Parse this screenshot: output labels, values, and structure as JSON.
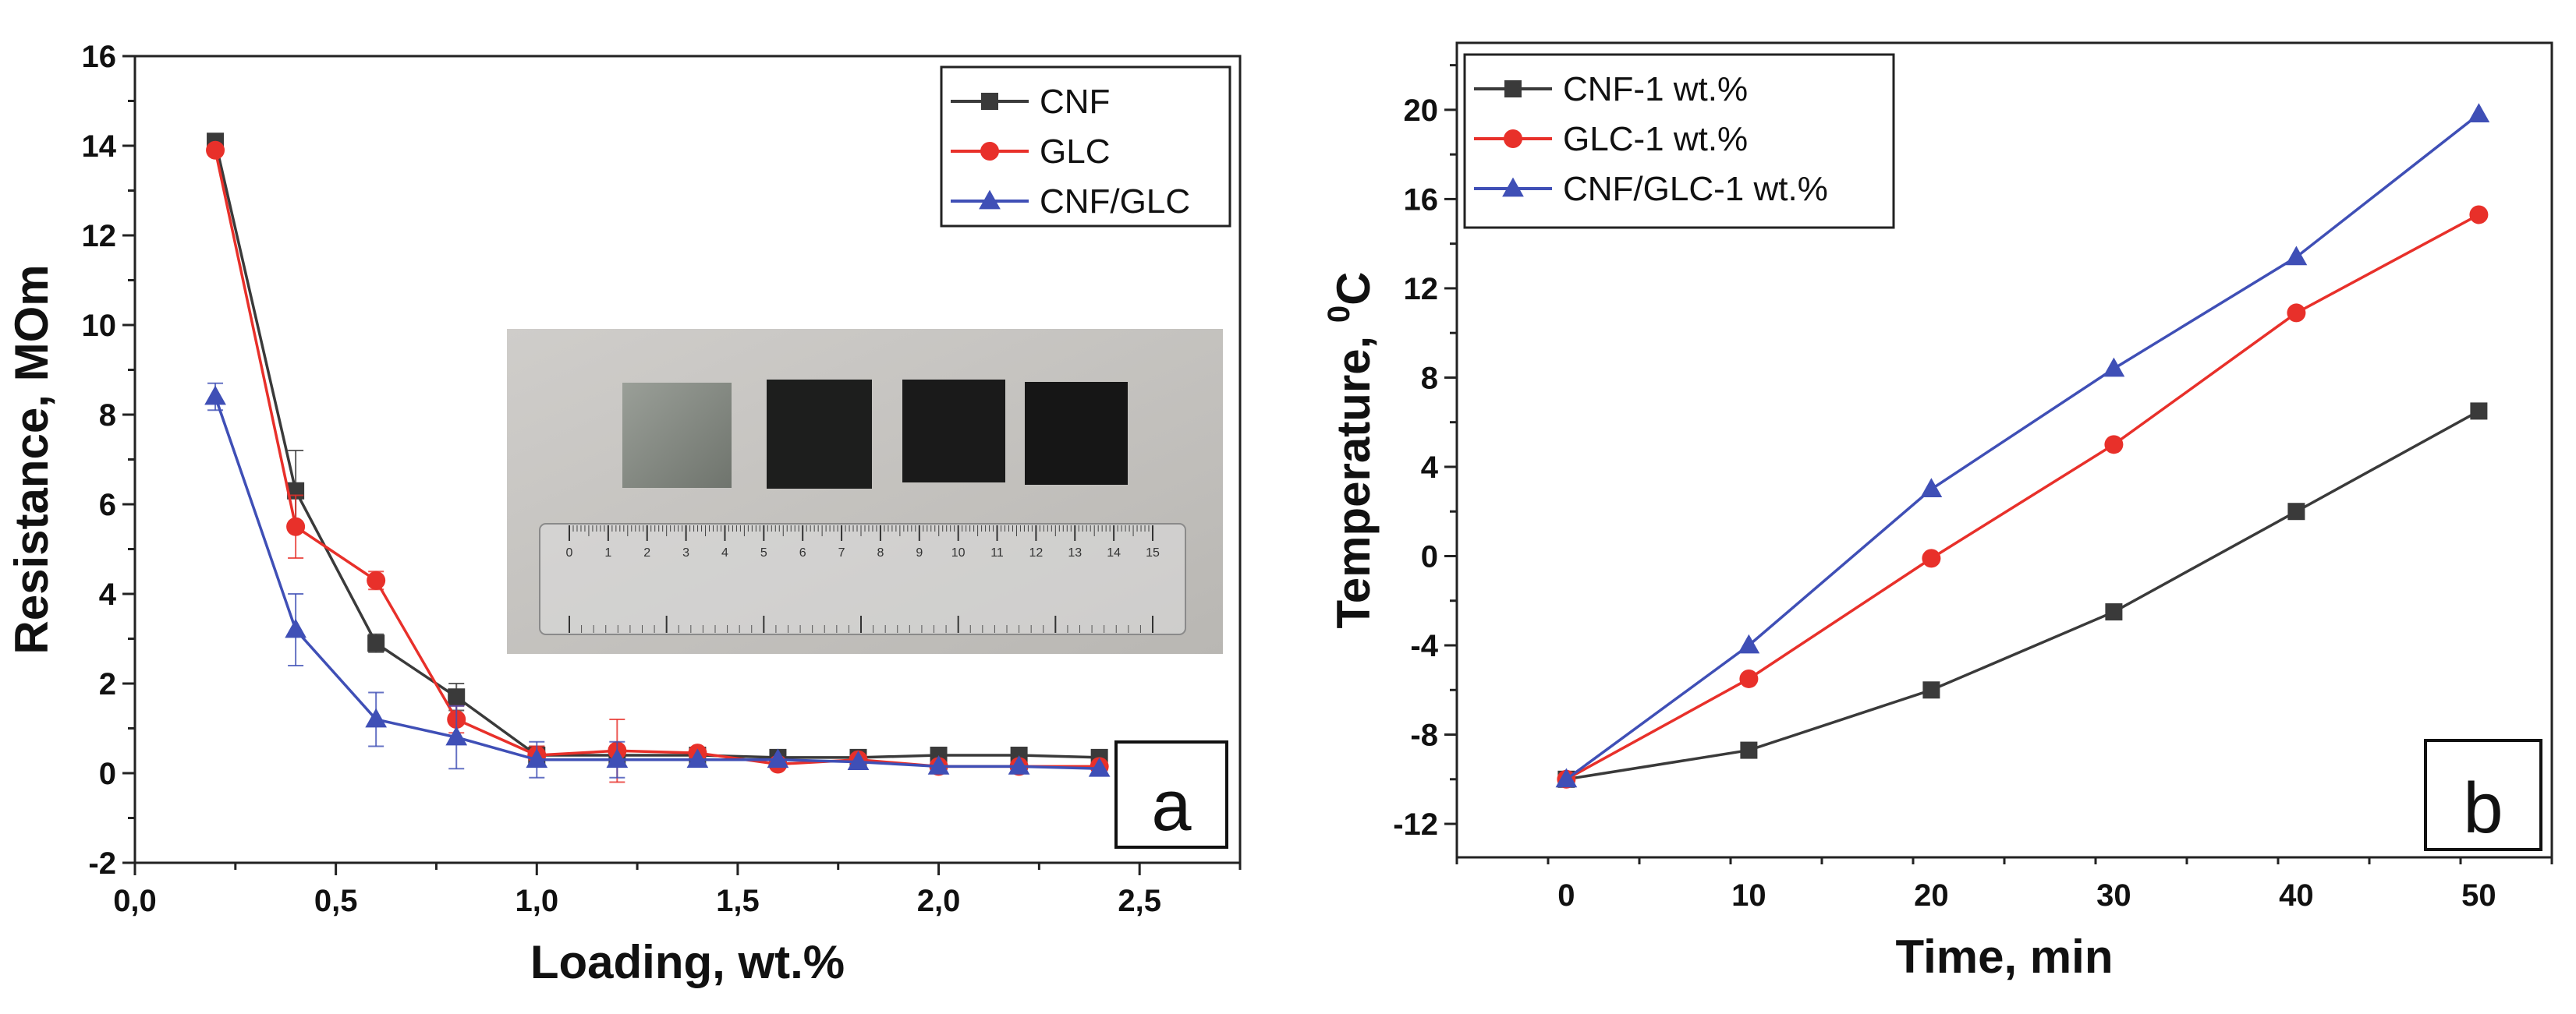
{
  "colors": {
    "CNF": "#3a3a3a",
    "GLC": "#e8302a",
    "CNF/GLC": "#3f4fb6"
  },
  "chart_data": [
    {
      "type": "line",
      "panel_label": "a",
      "title": "",
      "xlabel": "Loading, wt.%",
      "ylabel": "Resistance, MOm",
      "xlim": [
        0,
        2.75
      ],
      "ylim": [
        -2,
        16
      ],
      "xticks": [
        0,
        0.5,
        1.0,
        1.5,
        2.0,
        2.5
      ],
      "xtick_labels": [
        "0,0",
        "0,5",
        "1,0",
        "1,5",
        "2,0",
        "2,5"
      ],
      "yticks": [
        -2,
        0,
        2,
        4,
        6,
        8,
        10,
        12,
        14,
        16
      ],
      "ytick_labels": [
        "-2",
        "0",
        "2",
        "4",
        "6",
        "8",
        "10",
        "12",
        "14",
        "16"
      ],
      "grid": false,
      "legend_position": "top-right",
      "x": [
        0.2,
        0.4,
        0.6,
        0.8,
        1.0,
        1.2,
        1.4,
        1.6,
        1.8,
        2.0,
        2.2,
        2.4
      ],
      "series": [
        {
          "name": "CNF",
          "marker": "square",
          "values": [
            14.1,
            6.3,
            2.9,
            1.7,
            0.4,
            0.4,
            0.4,
            0.35,
            0.35,
            0.4,
            0.4,
            0.35
          ],
          "errors": [
            0.1,
            0.9,
            0.2,
            0.3,
            0.2,
            0.2,
            0.1,
            0.1,
            0.1,
            0.1,
            0.1,
            0.1
          ]
        },
        {
          "name": "GLC",
          "marker": "circle",
          "values": [
            13.9,
            5.5,
            4.3,
            1.2,
            0.4,
            0.5,
            0.45,
            0.2,
            0.3,
            0.15,
            0.15,
            0.15
          ],
          "errors": [
            0.1,
            0.7,
            0.2,
            0.3,
            0.2,
            0.7,
            0.1,
            0.1,
            0.1,
            0.1,
            0.1,
            0.1
          ]
        },
        {
          "name": "CNF/GLC",
          "marker": "triangle",
          "values": [
            8.4,
            3.2,
            1.2,
            0.8,
            0.3,
            0.3,
            0.3,
            0.3,
            0.25,
            0.15,
            0.15,
            0.1
          ],
          "errors": [
            0.3,
            0.8,
            0.6,
            0.7,
            0.4,
            0.4,
            0.1,
            0.1,
            0.1,
            0.1,
            0.1,
            0.1
          ]
        }
      ]
    },
    {
      "type": "line",
      "panel_label": "b",
      "title": "",
      "xlabel": "Time, min",
      "ylabel_main": "Temperature, ",
      "ylabel_sup": "0",
      "ylabel_unit": "C",
      "xlim": [
        -6,
        54
      ],
      "ylim": [
        -13.5,
        23
      ],
      "xticks": [
        0,
        10,
        20,
        30,
        40,
        50
      ],
      "xtick_labels": [
        "0",
        "10",
        "20",
        "30",
        "40",
        "50"
      ],
      "yticks": [
        -12,
        -8,
        -4,
        0,
        4,
        8,
        12,
        16,
        20
      ],
      "ytick_labels": [
        "-12",
        "-8",
        "-4",
        "0",
        "4",
        "8",
        "12",
        "16",
        "20"
      ],
      "grid": false,
      "legend_position": "top-left",
      "x": [
        0,
        10,
        20,
        30,
        40,
        50
      ],
      "series": [
        {
          "name": "CNF-1 wt.%",
          "marker": "square",
          "color_key": "CNF",
          "values": [
            -10,
            -8.7,
            -6,
            -2.5,
            2,
            6.5
          ]
        },
        {
          "name": "GLC-1 wt.%",
          "marker": "circle",
          "color_key": "GLC",
          "values": [
            -10,
            -5.5,
            -0.1,
            5,
            10.9,
            15.3
          ]
        },
        {
          "name": "CNF/GLC-1 wt.%",
          "marker": "triangle",
          "color_key": "CNF/GLC",
          "values": [
            -10,
            -4,
            3,
            8.4,
            13.4,
            19.8
          ]
        }
      ]
    }
  ],
  "inset_photo": {
    "ruler_top_numbers": [
      "0",
      "1",
      "2",
      "3",
      "4",
      "5",
      "6",
      "7",
      "8",
      "9",
      "10",
      "11",
      "12",
      "13",
      "14",
      "15"
    ]
  }
}
